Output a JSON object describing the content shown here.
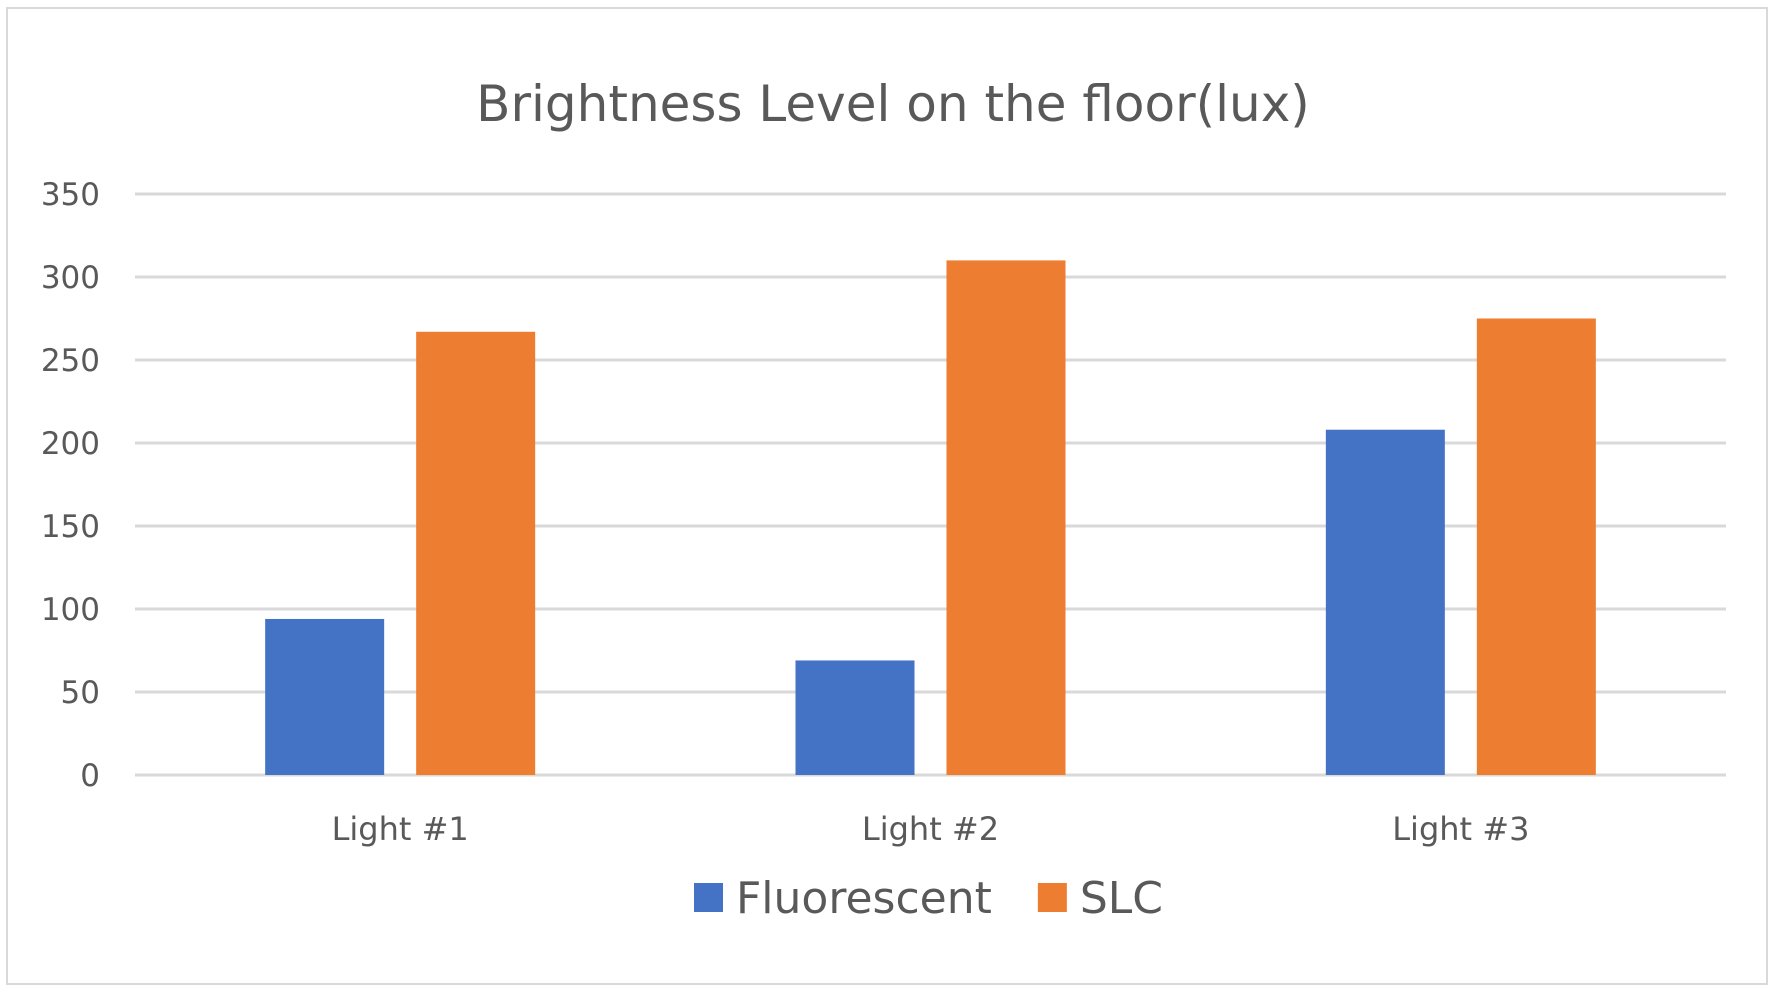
{
  "chart_data": {
    "type": "bar",
    "title": "Brightness Level on the floor(lux)",
    "xlabel": "",
    "ylabel": "",
    "categories": [
      "Light #1",
      "Light #2",
      "Light #3"
    ],
    "series": [
      {
        "name": "Fluorescent",
        "color": "#4472c4",
        "values": [
          94,
          69,
          208
        ]
      },
      {
        "name": "SLC",
        "color": "#ed7d31",
        "values": [
          267,
          310,
          275
        ]
      }
    ],
    "ylim": [
      0,
      350
    ],
    "yticks": [
      "0",
      "50",
      "100",
      "150",
      "200",
      "250",
      "300",
      "350"
    ],
    "ytick_values": [
      0,
      50,
      100,
      150,
      200,
      250,
      300,
      350
    ],
    "grid": true,
    "legend_position": "bottom"
  }
}
